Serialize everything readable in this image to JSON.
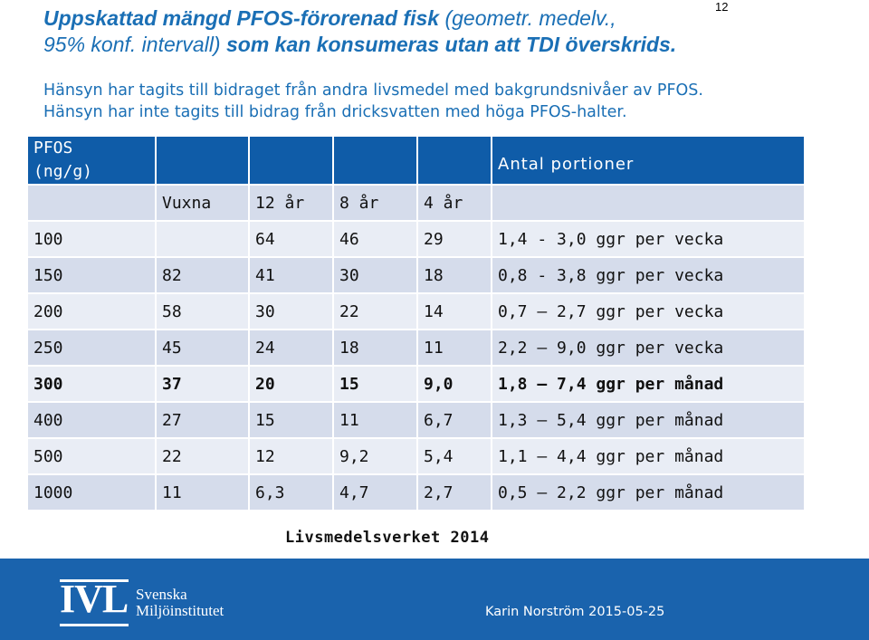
{
  "slide_number": "12",
  "title": {
    "line1_bold": "Uppskattad mängd PFOS-förorenad fisk",
    "line1_normal": " (geometr. medelv.,",
    "line2_normal": "95% konf. intervall) ",
    "line2_bold": "som kan konsumeras utan att TDI överskrids."
  },
  "subtitle": {
    "line1": "Hänsyn har tagits till bidraget från andra livsmedel med bakgrundsnivåer av PFOS.",
    "line2": "Hänsyn har inte tagits till bidrag från dricksvatten med höga PFOS-halter."
  },
  "table": {
    "header": {
      "pfos_line1": "PFOS",
      "pfos_line2": "(ng/g)",
      "antal": "Antal portioner"
    },
    "groups": [
      "Vuxna",
      "12 år",
      "8 år",
      "4 år"
    ],
    "rows": [
      {
        "pfos": "100",
        "vuxna": "",
        "y12": "64",
        "y8": "46",
        "y4": "29",
        "freq": "1,4 - 3,0 ggr per vecka",
        "bold": false
      },
      {
        "pfos": "150",
        "vuxna": "82",
        "y12": "41",
        "y8": "30",
        "y4": "18",
        "freq": "0,8 - 3,8  ggr per vecka",
        "bold": false
      },
      {
        "pfos": "200",
        "vuxna": "58",
        "y12": "30",
        "y8": "22",
        "y4": "14",
        "freq": "0,7 – 2,7 ggr per vecka",
        "bold": false
      },
      {
        "pfos": "250",
        "vuxna": "45",
        "y12": "24",
        "y8": "18",
        "y4": "11",
        "freq": "2,2 – 9,0 ggr per vecka",
        "bold": false
      },
      {
        "pfos": "300",
        "vuxna": "37",
        "y12": "20",
        "y8": "15",
        "y4": "9,0",
        "freq": "1,8 – 7,4 ggr per månad",
        "bold": true
      },
      {
        "pfos": "400",
        "vuxna": "27",
        "y12": "15",
        "y8": "11",
        "y4": "6,7",
        "freq": "1,3 – 5,4 ggr per månad",
        "bold": false
      },
      {
        "pfos": "500",
        "vuxna": "22",
        "y12": "12",
        "y8": "9,2",
        "y4": "5,4",
        "freq": "1,1 – 4,4 ggr per månad",
        "bold": false
      },
      {
        "pfos": "1000",
        "vuxna": "11",
        "y12": "6,3",
        "y8": "4,7",
        "y4": "2,7",
        "freq": "0,5 – 2,2 ggr per månad",
        "bold": false
      }
    ]
  },
  "source": "Livsmedelsverket 2014",
  "footer": {
    "logo_text": "IVL",
    "logo_name_line1": "Svenska",
    "logo_name_line2": "Miljöinstitutet",
    "author": "Karin Norström 2015-05-25"
  },
  "colors": {
    "title_blue": "#1a6fb5",
    "header_blue": "#0f5ca8",
    "row_dark": "#d5dceb",
    "row_light": "#e9edf5",
    "footer_blue": "#1a63ad"
  }
}
